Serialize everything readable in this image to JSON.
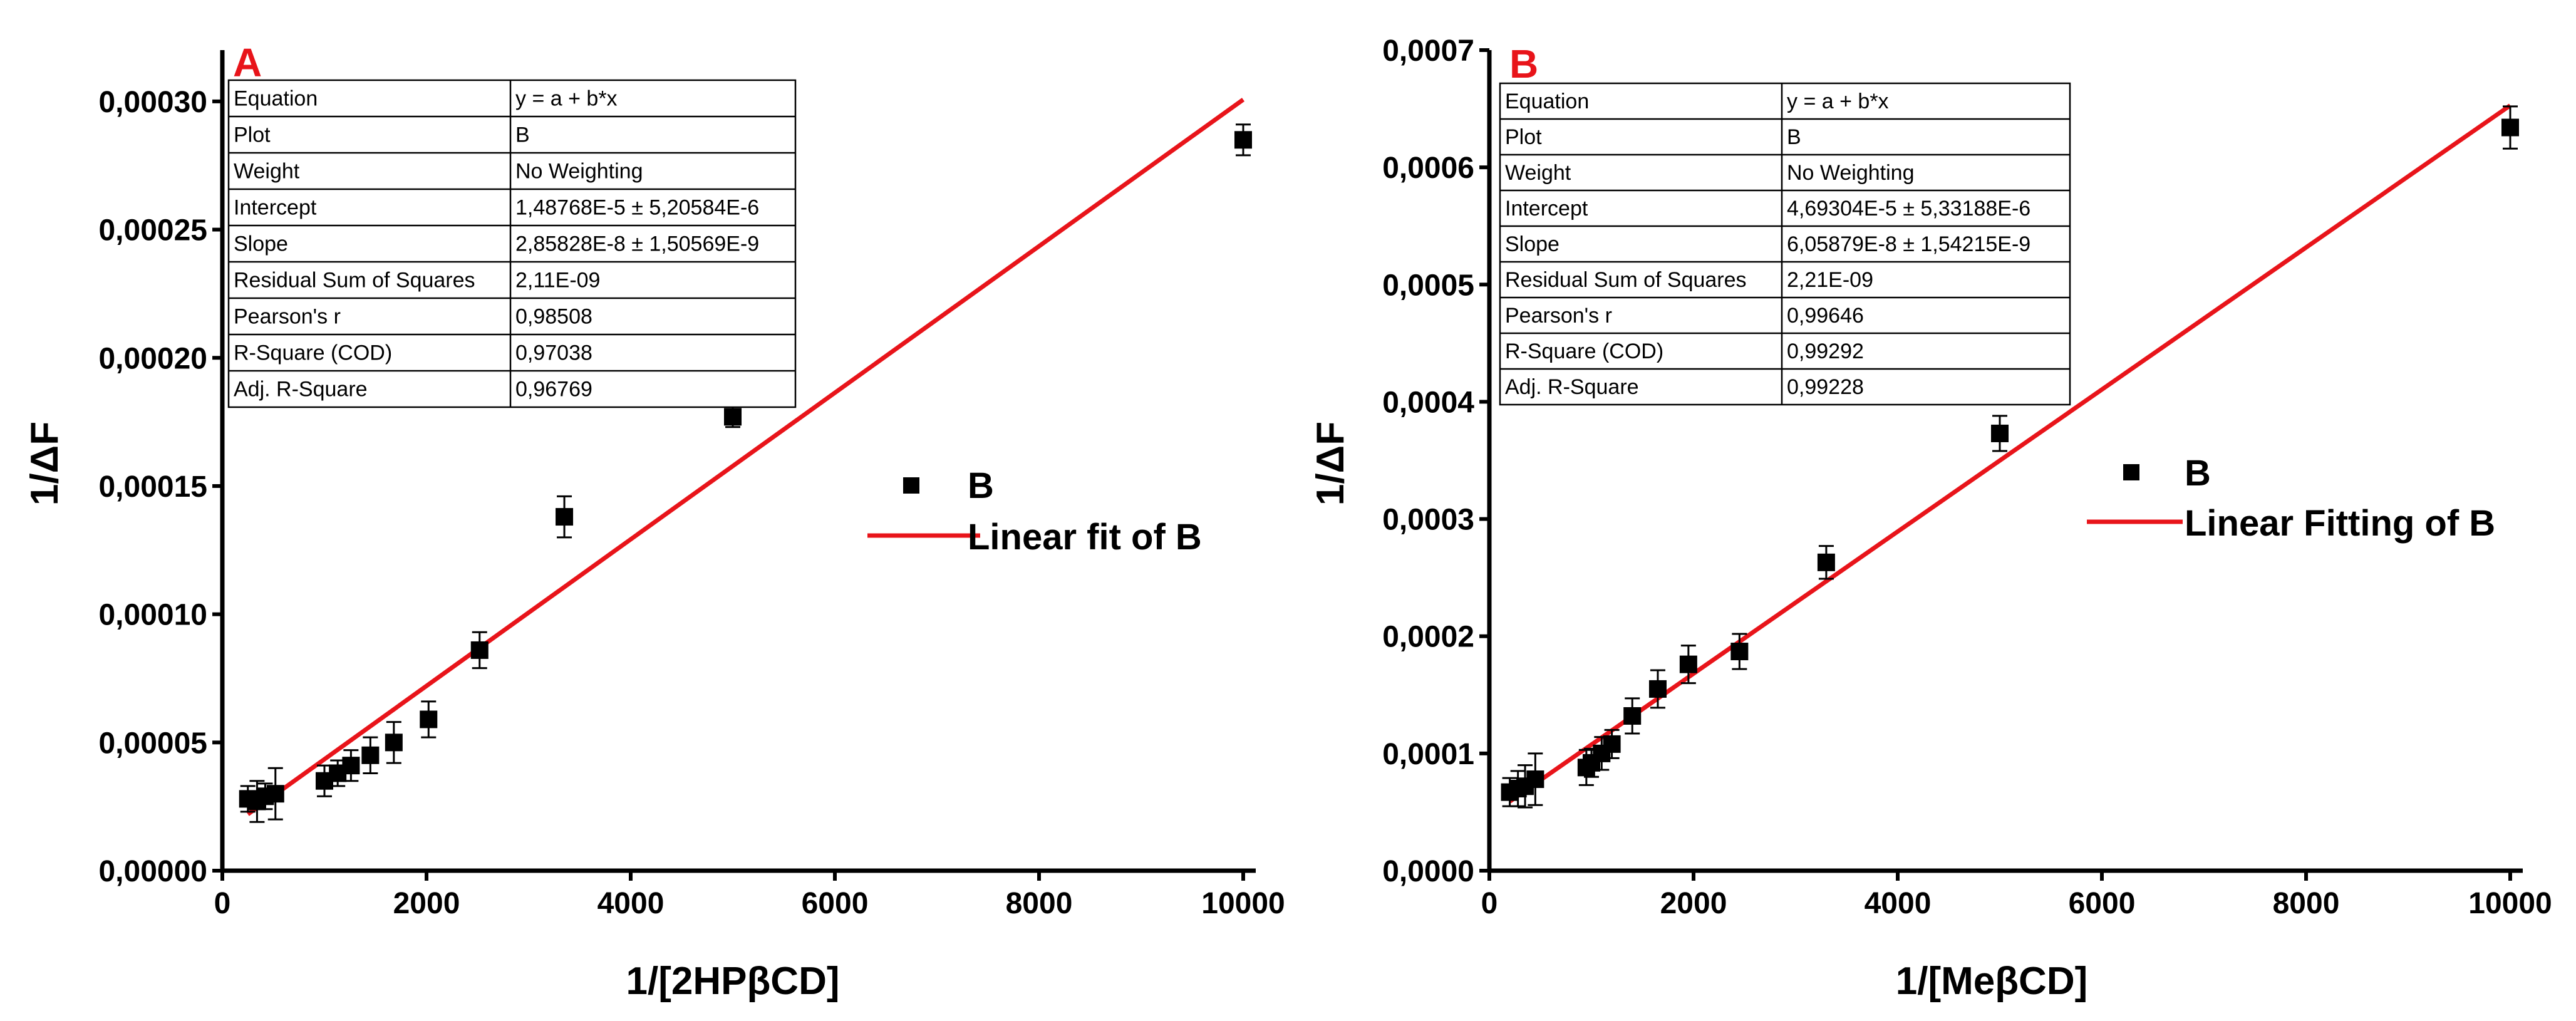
{
  "chart_data": [
    {
      "type": "scatter",
      "panel_label": "A",
      "xlabel": "1/[2HPβCD]",
      "ylabel": "1/ΔF",
      "xlim": [
        0,
        10000
      ],
      "ylim": [
        0,
        0.00032
      ],
      "x_ticks": [
        0,
        2000,
        4000,
        6000,
        8000,
        10000
      ],
      "x_tick_labels": [
        "0",
        "2000",
        "4000",
        "6000",
        "8000",
        "10000"
      ],
      "y_ticks": [
        0,
        5e-05,
        0.0001,
        0.00015,
        0.0002,
        0.00025,
        0.0003
      ],
      "y_tick_labels": [
        "0,00000",
        "0,00005",
        "0,00010",
        "0,00015",
        "0,00020",
        "0,00025",
        "0,00030"
      ],
      "series": [
        {
          "name": "B",
          "x": [
            250,
            340,
            420,
            520,
            1000,
            1130,
            1260,
            1450,
            1680,
            2020,
            2520,
            3350,
            5000,
            10000
          ],
          "y": [
            2.8e-05,
            2.7e-05,
            2.9e-05,
            3e-05,
            3.5e-05,
            3.8e-05,
            4.1e-05,
            4.5e-05,
            5e-05,
            5.9e-05,
            8.6e-05,
            0.000138,
            0.000177,
            0.000285
          ],
          "err": [
            5e-06,
            8e-06,
            5e-06,
            1e-05,
            6e-06,
            5e-06,
            6e-06,
            7e-06,
            8e-06,
            7e-06,
            7e-06,
            8e-06,
            4e-06,
            6e-06
          ]
        }
      ],
      "fit": {
        "name": "Linear fit of B",
        "intercept": 1.48768e-05,
        "slope": 2.85828e-08,
        "x_range": [
          250,
          10000
        ]
      },
      "legend": {
        "marker_label": "B",
        "line_label": "Linear fit of B"
      },
      "stats_table": [
        [
          "Equation",
          "y = a + b*x"
        ],
        [
          "Plot",
          "B"
        ],
        [
          "Weight",
          "No Weighting"
        ],
        [
          "Intercept",
          "1,48768E-5 ± 5,20584E-6"
        ],
        [
          "Slope",
          "2,85828E-8 ± 1,50569E-9"
        ],
        [
          "Residual Sum of Squares",
          "2,11E-09"
        ],
        [
          "Pearson's r",
          "0,98508"
        ],
        [
          "R-Square (COD)",
          "0,97038"
        ],
        [
          "Adj. R-Square",
          "0,96769"
        ]
      ],
      "colors": {
        "fit": "#e8141a",
        "points": "#000000",
        "panel_label": "#e8141a"
      }
    },
    {
      "type": "scatter",
      "panel_label": "B",
      "xlabel": "1/[MeβCD]",
      "ylabel": "1/ΔF",
      "xlim": [
        0,
        10000
      ],
      "ylim": [
        0,
        0.0007
      ],
      "x_ticks": [
        0,
        2000,
        4000,
        6000,
        8000,
        10000
      ],
      "x_tick_labels": [
        "0",
        "2000",
        "4000",
        "6000",
        "8000",
        "10000"
      ],
      "y_ticks": [
        0,
        0.0001,
        0.0002,
        0.0003,
        0.0004,
        0.0005,
        0.0006,
        0.0007
      ],
      "y_tick_labels": [
        "0,0000",
        "0,0001",
        "0,0002",
        "0,0003",
        "0,0004",
        "0,0005",
        "0,0006",
        "0,0007"
      ],
      "series": [
        {
          "name": "B",
          "x": [
            200,
            280,
            350,
            450,
            950,
            1000,
            1100,
            1200,
            1400,
            1650,
            1950,
            2450,
            3300,
            5000,
            10000
          ],
          "y": [
            6.7e-05,
            7e-05,
            7.2e-05,
            7.8e-05,
            8.8e-05,
            9.2e-05,
            0.0001,
            0.000108,
            0.000132,
            0.000155,
            0.000176,
            0.000187,
            0.000263,
            0.000373,
            0.000634
          ],
          "err": [
            1.2e-05,
            1.5e-05,
            1.8e-05,
            2.2e-05,
            1.5e-05,
            1.2e-05,
            1.4e-05,
            1.2e-05,
            1.5e-05,
            1.6e-05,
            1.6e-05,
            1.5e-05,
            1.4e-05,
            1.5e-05,
            1.8e-05
          ]
        }
      ],
      "fit": {
        "name": "Linear Fitting of B",
        "intercept": 4.69304e-05,
        "slope": 6.05879e-08,
        "x_range": [
          200,
          10000
        ]
      },
      "legend": {
        "marker_label": "B",
        "line_label": "Linear Fitting of B"
      },
      "stats_table": [
        [
          "Equation",
          "y = a + b*x"
        ],
        [
          "Plot",
          "B"
        ],
        [
          "Weight",
          "No Weighting"
        ],
        [
          "Intercept",
          "4,69304E-5 ± 5,33188E-6"
        ],
        [
          "Slope",
          "6,05879E-8 ± 1,54215E-9"
        ],
        [
          "Residual Sum of Squares",
          "2,21E-09"
        ],
        [
          "Pearson's r",
          "0,99646"
        ],
        [
          "R-Square (COD)",
          "0,99292"
        ],
        [
          "Adj. R-Square",
          "0,99228"
        ]
      ],
      "colors": {
        "fit": "#e8141a",
        "points": "#000000",
        "panel_label": "#e8141a"
      }
    }
  ]
}
